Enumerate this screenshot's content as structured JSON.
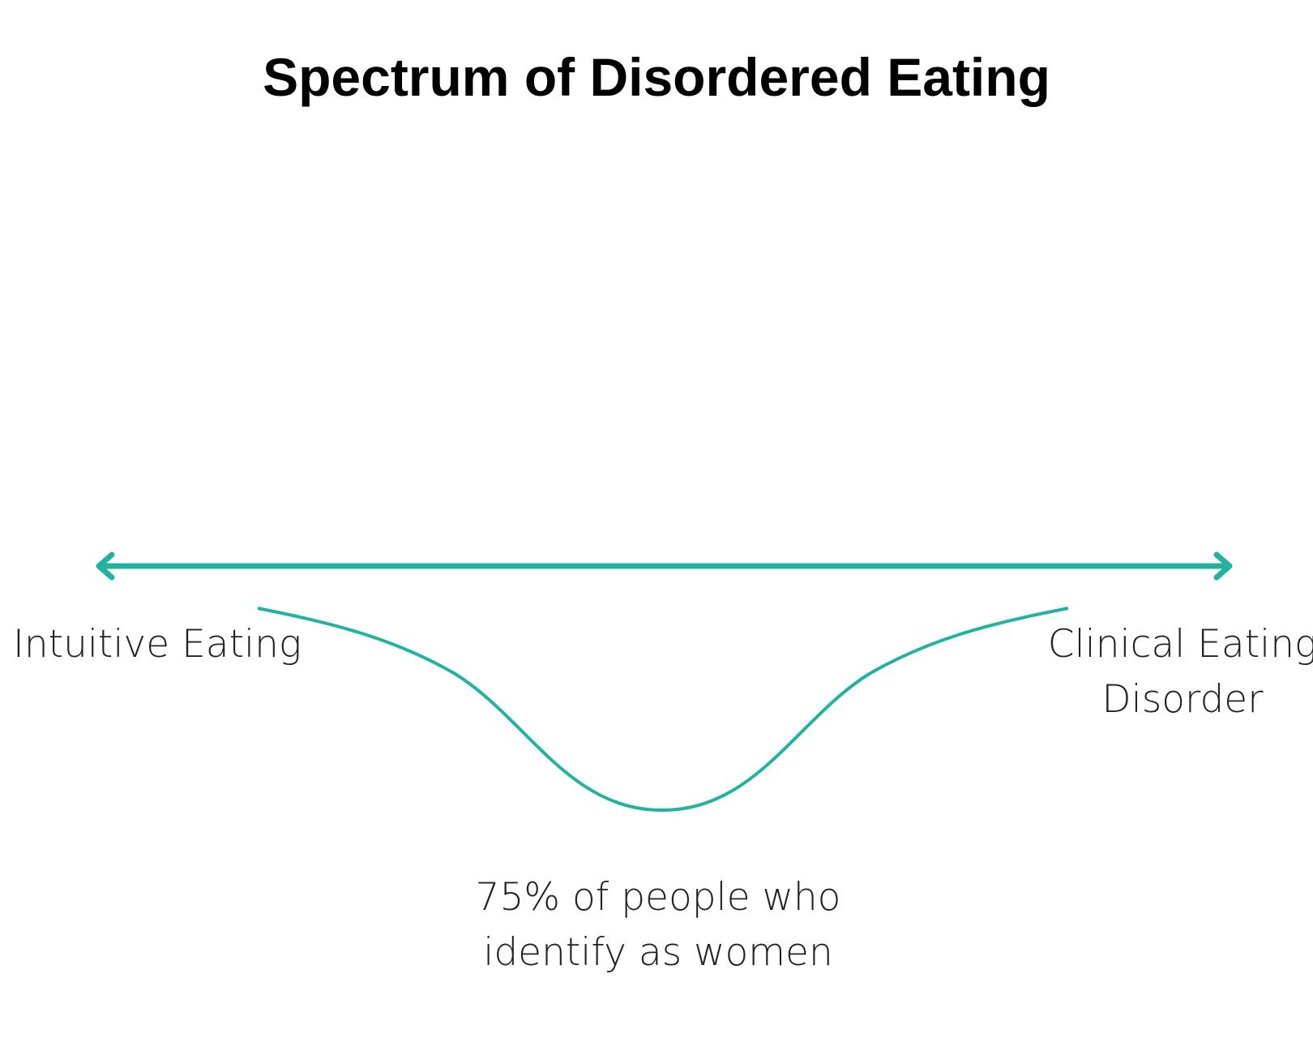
{
  "title": "Spectrum of Disordered Eating",
  "left_label": "Intuitive Eating",
  "right_label": [
    "Clinical Eating",
    "Disorder"
  ],
  "annotation": [
    "75% of people who",
    "identify as women"
  ]
}
